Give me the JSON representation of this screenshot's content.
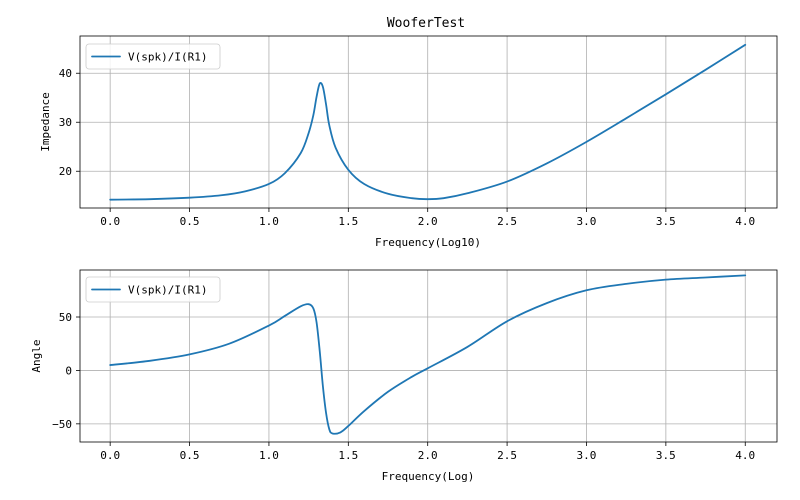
{
  "figure_title": "WooferTest",
  "chart_data": [
    {
      "type": "line",
      "title": "WooferTest",
      "xlabel": "Frequency(Log10)",
      "ylabel": "Impedance",
      "xlim": [
        -0.19,
        4.2
      ],
      "ylim": [
        12.5,
        47.6
      ],
      "xticks": [
        "0.0",
        "0.5",
        "1.0",
        "1.5",
        "2.0",
        "2.5",
        "3.0",
        "3.5",
        "4.0"
      ],
      "yticks": [
        "20",
        "30",
        "40"
      ],
      "grid": true,
      "legend_position": "top-left",
      "series": [
        {
          "name": "V(spk)/I(R1)",
          "color": "#1f77b4",
          "x": [
            0.0,
            0.25,
            0.5,
            0.7,
            0.85,
            1.0,
            1.1,
            1.2,
            1.25,
            1.28,
            1.3,
            1.32,
            1.34,
            1.36,
            1.38,
            1.42,
            1.5,
            1.6,
            1.75,
            1.9,
            2.0,
            2.1,
            2.25,
            2.5,
            2.75,
            3.0,
            3.25,
            3.5,
            3.75,
            4.0
          ],
          "y": [
            14.2,
            14.3,
            14.6,
            15.1,
            15.9,
            17.4,
            19.6,
            23.7,
            27.8,
            31.5,
            35.2,
            37.9,
            37.2,
            33.6,
            29.4,
            24.8,
            20.3,
            17.4,
            15.4,
            14.5,
            14.3,
            14.5,
            15.5,
            17.9,
            21.6,
            26.0,
            30.8,
            35.7,
            40.7,
            45.8
          ]
        }
      ]
    },
    {
      "type": "line",
      "title": "",
      "xlabel": "Frequency(Log)",
      "ylabel": "Angle",
      "xlim": [
        -0.19,
        4.2
      ],
      "ylim": [
        -67,
        94
      ],
      "xticks": [
        "0.0",
        "0.5",
        "1.0",
        "1.5",
        "2.0",
        "2.5",
        "3.0",
        "3.5",
        "4.0"
      ],
      "yticks": [
        "-50",
        "0",
        "50"
      ],
      "grid": true,
      "legend_position": "top-left",
      "series": [
        {
          "name": "V(spk)/I(R1)",
          "color": "#1f77b4",
          "x": [
            0.0,
            0.25,
            0.5,
            0.75,
            1.0,
            1.1,
            1.2,
            1.25,
            1.28,
            1.3,
            1.32,
            1.34,
            1.36,
            1.38,
            1.4,
            1.45,
            1.5,
            1.6,
            1.75,
            1.9,
            2.0,
            2.25,
            2.5,
            2.75,
            3.0,
            3.25,
            3.5,
            3.75,
            4.0
          ],
          "y": [
            5,
            9,
            15,
            25,
            42,
            51,
            60,
            62,
            58,
            45,
            18,
            -15,
            -40,
            -55,
            -59,
            -58,
            -52,
            -38,
            -20,
            -6,
            2,
            22,
            46,
            63,
            75,
            81,
            85,
            87,
            89
          ]
        }
      ]
    }
  ]
}
